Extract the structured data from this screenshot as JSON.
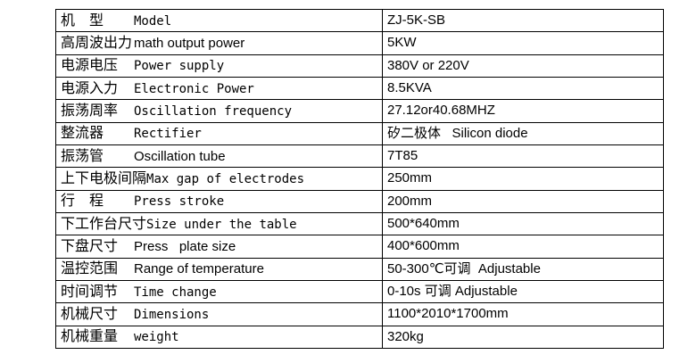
{
  "page": {
    "background_color": "#ffffff",
    "text_color": "#000000",
    "border_color": "#000000"
  },
  "spec_table": {
    "rows": [
      {
        "zh": "机　型",
        "en": "Model",
        "value": "ZJ-5K-SB"
      },
      {
        "zh": "高周波出力",
        "en": "math output power",
        "value": "5KW"
      },
      {
        "zh": "电源电压",
        "en": "Power supply",
        "value": "380V or 220V"
      },
      {
        "zh": "电源入力",
        "en": "Electronic Power",
        "value": "8.5KVA"
      },
      {
        "zh": "振荡周率",
        "en": "Oscillation frequency",
        "value": "27.12or40.68MHZ"
      },
      {
        "zh": "整流器",
        "en": "Rectifier",
        "value": "矽二极体   Silicon diode"
      },
      {
        "zh": "振荡管",
        "en": "Oscillation tube",
        "value": "7T85"
      },
      {
        "zh": "上下电极间隔",
        "en": "Max gap of electrodes",
        "value": "250mm"
      },
      {
        "zh": "行　程",
        "en": "Press stroke",
        "value": "200mm"
      },
      {
        "zh": "下工作台尺寸",
        "en": "Size under the table",
        "value": "500*640mm"
      },
      {
        "zh": "下盘尺寸",
        "en": "Press   plate size",
        "value": "400*600mm"
      },
      {
        "zh": "温控范围",
        "en": "Range of temperature",
        "value": "50-300℃可调  Adjustable"
      },
      {
        "zh": "时间调节",
        "en": "Time change",
        "value": "0-10s 可调 Adjustable"
      },
      {
        "zh": "机械尺寸",
        "en": "Dimensions",
        "value": "1100*2010*1700mm"
      },
      {
        "zh": "机械重量",
        "en": "weight",
        "value": "320kg"
      }
    ]
  }
}
